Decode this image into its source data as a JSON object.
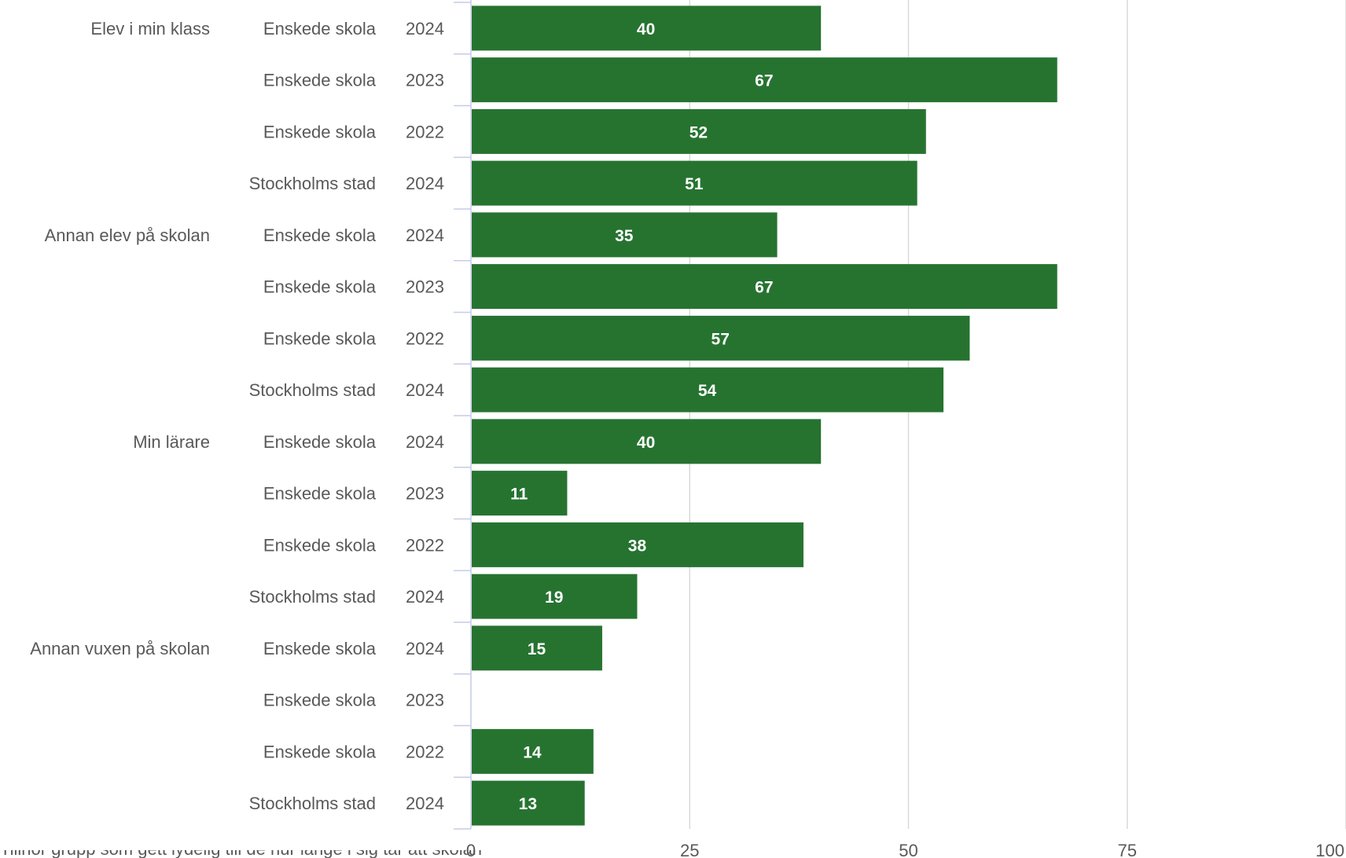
{
  "chart_data": {
    "type": "bar",
    "orientation": "horizontal",
    "xlim": [
      0,
      100
    ],
    "xticks": [
      0,
      25,
      50,
      75,
      100
    ],
    "grid": true,
    "bar_color": "#267330",
    "groups": [
      {
        "name": "Elev i min klass",
        "rows": [
          {
            "source": "Enskede skola",
            "year": "2024",
            "value": 40
          },
          {
            "source": "Enskede skola",
            "year": "2023",
            "value": 67
          },
          {
            "source": "Enskede skola",
            "year": "2022",
            "value": 52
          },
          {
            "source": "Stockholms stad",
            "year": "2024",
            "value": 51
          }
        ]
      },
      {
        "name": "Annan elev på skolan",
        "rows": [
          {
            "source": "Enskede skola",
            "year": "2024",
            "value": 35
          },
          {
            "source": "Enskede skola",
            "year": "2023",
            "value": 67
          },
          {
            "source": "Enskede skola",
            "year": "2022",
            "value": 57
          },
          {
            "source": "Stockholms stad",
            "year": "2024",
            "value": 54
          }
        ]
      },
      {
        "name": "Min lärare",
        "rows": [
          {
            "source": "Enskede skola",
            "year": "2024",
            "value": 40
          },
          {
            "source": "Enskede skola",
            "year": "2023",
            "value": 11
          },
          {
            "source": "Enskede skola",
            "year": "2022",
            "value": 38
          },
          {
            "source": "Stockholms stad",
            "year": "2024",
            "value": 19
          }
        ]
      },
      {
        "name": "Annan vuxen på skolan",
        "rows": [
          {
            "source": "Enskede skola",
            "year": "2024",
            "value": 15
          },
          {
            "source": "Enskede skola",
            "year": "2023",
            "value": null
          },
          {
            "source": "Enskede skola",
            "year": "2022",
            "value": 14
          },
          {
            "source": "Stockholms stad",
            "year": "2024",
            "value": 13
          }
        ]
      }
    ]
  },
  "footnote": "Tillhör grupp som gett lydelig till de hur länge i sig tar att skolan"
}
